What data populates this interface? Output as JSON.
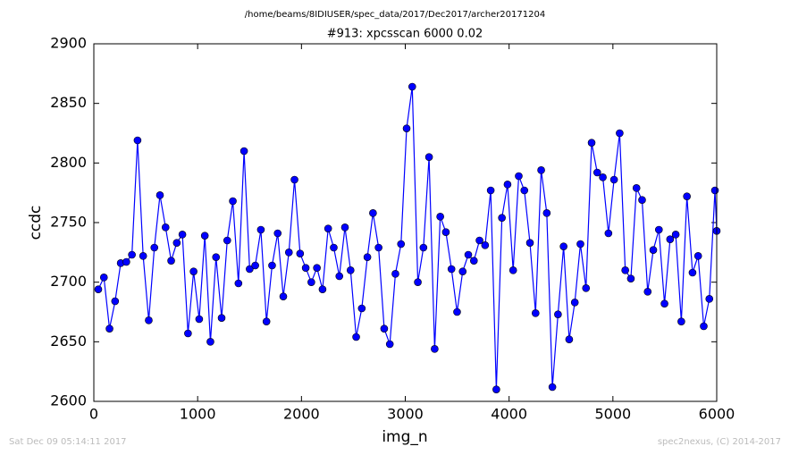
{
  "chart_data": {
    "type": "line",
    "suptitle": "/home/beams/8IDIUSER/spec_data/2017/Dec2017/archer20171204",
    "title": "#913: xpcsscan 6000 0.02",
    "x_label": "img_n",
    "y_label": "ccdc",
    "footer_left": "Sat Dec 09 05:14:11 2017",
    "footer_right": "spec2nexus, (C) 2014-2017",
    "x": [
      43,
      97,
      151,
      205,
      259,
      313,
      367,
      421,
      475,
      529,
      583,
      637,
      691,
      745,
      799,
      853,
      907,
      961,
      1015,
      1069,
      1123,
      1177,
      1231,
      1285,
      1339,
      1393,
      1447,
      1501,
      1555,
      1609,
      1663,
      1717,
      1771,
      1825,
      1879,
      1933,
      1987,
      2041,
      2095,
      2149,
      2203,
      2257,
      2311,
      2365,
      2419,
      2473,
      2527,
      2581,
      2635,
      2689,
      2743,
      2797,
      2851,
      2905,
      2959,
      3013,
      3067,
      3121,
      3175,
      3229,
      3283,
      3337,
      3391,
      3445,
      3499,
      3553,
      3607,
      3661,
      3715,
      3769,
      3823,
      3877,
      3931,
      3985,
      4039,
      4093,
      4147,
      4201,
      4255,
      4309,
      4363,
      4417,
      4471,
      4525,
      4579,
      4633,
      4687,
      4741,
      4795,
      4849,
      4903,
      4957,
      5011,
      5065,
      5119,
      5173,
      5227,
      5281,
      5335,
      5389,
      5443,
      5497,
      5551,
      5605,
      5659,
      5713,
      5767,
      5821,
      5875,
      5929,
      5983,
      6000
    ],
    "series": [
      {
        "color": "#0000ff",
        "values": [
          2694,
          2704,
          2661,
          2684,
          2716,
          2717,
          2723,
          2819,
          2722,
          2668,
          2729,
          2773,
          2746,
          2718,
          2733,
          2740,
          2657,
          2709,
          2669,
          2739,
          2650,
          2721,
          2670,
          2735,
          2768,
          2699,
          2810,
          2711,
          2714,
          2744,
          2667,
          2714,
          2741,
          2688,
          2725,
          2786,
          2724,
          2712,
          2700,
          2712,
          2694,
          2745,
          2729,
          2705,
          2746,
          2710,
          2654,
          2678,
          2721,
          2758,
          2729,
          2661,
          2648,
          2707,
          2732,
          2829,
          2864,
          2700,
          2729,
          2805,
          2644,
          2755,
          2742,
          2711,
          2675,
          2709,
          2723,
          2718,
          2735,
          2731,
          2777,
          2610,
          2754,
          2782,
          2710,
          2789,
          2777,
          2733,
          2674,
          2794,
          2758,
          2612,
          2673,
          2730,
          2652,
          2683,
          2732,
          2695,
          2817,
          2792,
          2788,
          2741,
          2786,
          2825,
          2710,
          2703,
          2779,
          2769,
          2692,
          2727,
          2744,
          2682,
          2736,
          2740,
          2667,
          2772,
          2708,
          2722,
          2663,
          2686,
          2777,
          2743
        ]
      }
    ],
    "xlim": [
      0,
      6000
    ],
    "xticks": [
      0,
      1000,
      2000,
      3000,
      4000,
      5000,
      6000
    ],
    "ylim": [
      2600,
      2900
    ],
    "yticks": [
      2600,
      2650,
      2700,
      2750,
      2800,
      2850,
      2900
    ]
  }
}
